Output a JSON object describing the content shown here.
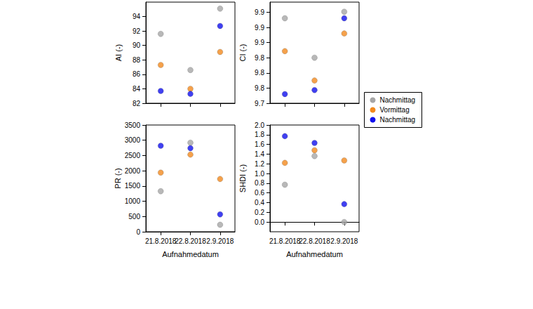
{
  "chart_data": [
    {
      "type": "scatter",
      "y_label": "AI (-)",
      "categories": [
        "21.8.2018",
        "22.8.2018",
        "2.9.2018"
      ],
      "series": [
        {
          "name": "Nachmittag",
          "color": "#a6a6a6",
          "values": [
            91.6,
            86.6,
            95.1
          ]
        },
        {
          "name": "Vormittag",
          "color": "#f28a1e",
          "values": [
            87.3,
            84.0,
            89.1
          ]
        },
        {
          "name": "Nachmittag",
          "color": "#1010ee",
          "values": [
            83.7,
            83.3,
            92.7
          ]
        }
      ],
      "ylim": [
        82,
        96
      ],
      "yticks": [
        82,
        84,
        86,
        88,
        90,
        92,
        94
      ],
      "grid": false,
      "tick_labels": "y",
      "marker": "circle",
      "legend": "right"
    },
    {
      "type": "scatter",
      "y_label": "CI (-)",
      "categories": [
        "21.8.2018",
        "22.8.2018",
        "2.9.2018"
      ],
      "series": [
        {
          "name": "Nachmittag",
          "color": "#a6a6a6",
          "values": [
            9.898,
            9.82,
            9.911
          ]
        },
        {
          "name": "Vormittag",
          "color": "#f28a1e",
          "values": [
            9.833,
            9.775,
            9.868
          ]
        },
        {
          "name": "Nachmittag",
          "color": "#1010ee",
          "values": [
            9.748,
            9.756,
            9.898
          ]
        }
      ],
      "ylim": [
        9.73,
        9.93
      ],
      "yticks": [
        {
          "value": 9.73,
          "label": "9.7"
        },
        {
          "value": 9.76,
          "label": "9.8"
        },
        {
          "value": 9.79,
          "label": "9.8"
        },
        {
          "value": 9.82,
          "label": "9.8"
        },
        {
          "value": 9.85,
          "label": "9.9"
        },
        {
          "value": 9.88,
          "label": "9.9"
        },
        {
          "value": 9.91,
          "label": "9.9"
        }
      ],
      "grid": false,
      "tick_labels": "y",
      "marker": "circle"
    },
    {
      "type": "scatter",
      "y_label": "PR (-)",
      "x_label": "Aufnahmedatum",
      "categories": [
        "21.8.2018",
        "22.8.2018",
        "2.9.2018"
      ],
      "series": [
        {
          "name": "Nachmittag",
          "color": "#a6a6a6",
          "values": [
            1330,
            2920,
            230
          ]
        },
        {
          "name": "Vormittag",
          "color": "#f28a1e",
          "values": [
            1940,
            2530,
            1730
          ]
        },
        {
          "name": "Nachmittag",
          "color": "#1010ee",
          "values": [
            2820,
            2740,
            570
          ]
        }
      ],
      "ylim": [
        0,
        3500
      ],
      "yticks": [
        0,
        500,
        1000,
        1500,
        2000,
        2500,
        3000,
        3500
      ],
      "grid": false,
      "marker": "circle"
    },
    {
      "type": "scatter",
      "y_label": "SHDI (-)",
      "x_label": "Aufnahmedatum",
      "categories": [
        "21.8.2018",
        "22.8.2018",
        "2.9.2018"
      ],
      "series": [
        {
          "name": "Nachmittag",
          "color": "#a6a6a6",
          "values": [
            0.77,
            1.36,
            0.0
          ]
        },
        {
          "name": "Vormittag",
          "color": "#f28a1e",
          "values": [
            1.22,
            1.48,
            1.27
          ]
        },
        {
          "name": "Nachmittag",
          "color": "#1010ee",
          "values": [
            1.77,
            1.63,
            0.37
          ]
        }
      ],
      "ylim": [
        -0.2,
        2.0
      ],
      "yticks": [
        {
          "value": 0,
          "label": "0.0"
        },
        0.2,
        0.4,
        0.6,
        0.8,
        {
          "value": 1,
          "label": "1.0"
        },
        1.2,
        1.4,
        1.6,
        1.8,
        {
          "value": 2,
          "label": "2.0"
        }
      ],
      "grid": false,
      "marker": "circle"
    }
  ]
}
